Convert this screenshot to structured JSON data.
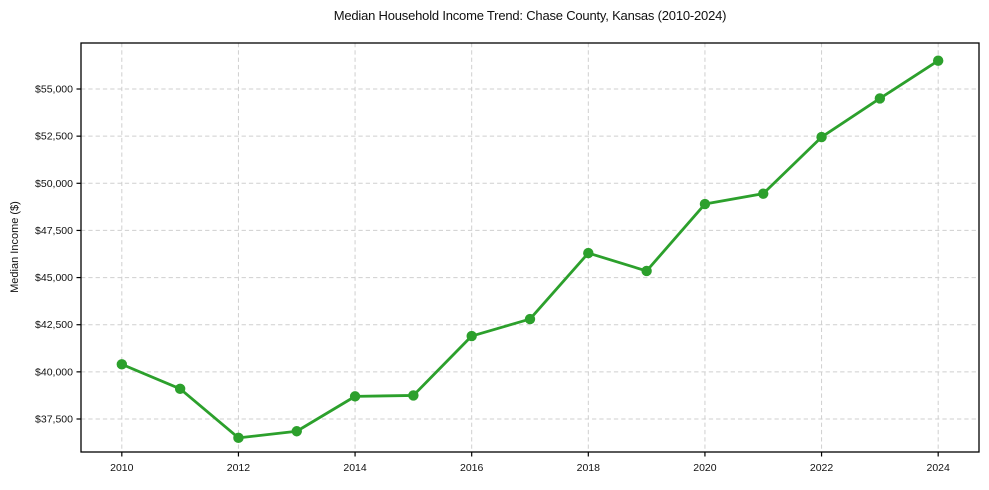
{
  "chart_data": {
    "type": "line",
    "title": "Median Household Income Trend: Chase County, Kansas (2010-2024)",
    "xlabel": "",
    "ylabel": "Median Income ($)",
    "series_name": "Median household income",
    "x": [
      2010,
      2011,
      2012,
      2013,
      2014,
      2015,
      2016,
      2017,
      2018,
      2019,
      2020,
      2021,
      2022,
      2023,
      2024
    ],
    "values": [
      40400,
      39100,
      36500,
      36850,
      38700,
      38750,
      41900,
      42800,
      46300,
      45350,
      48900,
      49450,
      52450,
      54500,
      56500
    ],
    "xticks": [
      2010,
      2012,
      2014,
      2016,
      2018,
      2020,
      2022,
      2024
    ],
    "ytick_values": [
      37500,
      40000,
      42500,
      45000,
      47500,
      50000,
      52500,
      55000
    ],
    "ytick_labels": [
      "$37,500",
      "$40,000",
      "$42,500",
      "$45,000",
      "$47,500",
      "$50,000",
      "$52,500",
      "$55,000"
    ],
    "xlim": [
      2009.3,
      2024.7
    ],
    "ylim": [
      35750,
      57440
    ],
    "grid": true,
    "legend": "none",
    "line_color": "#2ca02c",
    "marker": "circle",
    "grid_color": "#cfcfcf",
    "background_color": "#ffffff",
    "spine_color": "#000000"
  }
}
